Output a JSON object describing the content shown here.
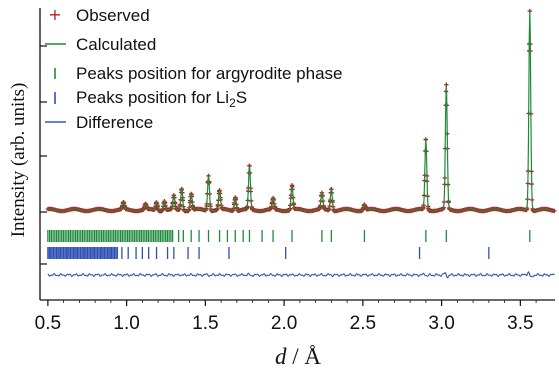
{
  "chart_data": {
    "type": "scatter",
    "title": "",
    "xlabel": "d / Å",
    "xlabel_parts": {
      "var": "d",
      "unit": " / Å"
    },
    "ylabel": "Intensity (arb. units)",
    "xlim": [
      0.45,
      3.72
    ],
    "ylim": [
      0,
      1
    ],
    "x_ticks": [
      0.5,
      1.0,
      1.5,
      2.0,
      2.5,
      3.0,
      3.5
    ],
    "x_tick_labels": [
      "0.5",
      "1.0",
      "1.5",
      "2.0",
      "2.5",
      "3.0",
      "3.5"
    ],
    "y_tick_labels_shown": false,
    "grid": false,
    "legend_position": "top-left",
    "legend": [
      {
        "name": "Observed",
        "marker": "+",
        "color": "#b22222"
      },
      {
        "name": "Calculated",
        "marker": "line",
        "color": "#1e8a3c"
      },
      {
        "name": "Peaks position for argyrodite phase",
        "marker": "tick",
        "color": "#1e8a3c"
      },
      {
        "name_main": "Peaks position for Li",
        "name_sub": "2",
        "name_end": "S",
        "marker": "tick",
        "color": "#2d4fb5"
      },
      {
        "name": "Difference",
        "marker": "line",
        "color": "#3556b8"
      }
    ],
    "background_level": 0.2,
    "peaks": [
      {
        "d": 0.98,
        "h": 0.025
      },
      {
        "d": 1.12,
        "h": 0.02
      },
      {
        "d": 1.19,
        "h": 0.03
      },
      {
        "d": 1.24,
        "h": 0.035
      },
      {
        "d": 1.3,
        "h": 0.05
      },
      {
        "d": 1.35,
        "h": 0.08
      },
      {
        "d": 1.41,
        "h": 0.06
      },
      {
        "d": 1.52,
        "h": 0.13
      },
      {
        "d": 1.59,
        "h": 0.07
      },
      {
        "d": 1.69,
        "h": 0.05
      },
      {
        "d": 1.78,
        "h": 0.16
      },
      {
        "d": 1.93,
        "h": 0.04
      },
      {
        "d": 2.05,
        "h": 0.09
      },
      {
        "d": 2.24,
        "h": 0.06
      },
      {
        "d": 2.3,
        "h": 0.08
      },
      {
        "d": 2.51,
        "h": 0.02
      },
      {
        "d": 2.9,
        "h": 0.26
      },
      {
        "d": 3.03,
        "h": 0.46
      },
      {
        "d": 3.56,
        "h": 0.74
      }
    ],
    "argyrodite_ticks_dense_range": [
      0.5,
      1.3
    ],
    "argyrodite_ticks_sparse": [
      1.33,
      1.36,
      1.41,
      1.46,
      1.52,
      1.59,
      1.64,
      1.69,
      1.74,
      1.78,
      1.86,
      1.93,
      2.05,
      2.24,
      2.3,
      2.51,
      2.9,
      3.03,
      3.56
    ],
    "li2s_ticks_dense_range": [
      0.5,
      0.95
    ],
    "li2s_ticks_sparse": [
      0.97,
      1.01,
      1.06,
      1.1,
      1.14,
      1.19,
      1.26,
      1.3,
      1.39,
      1.46,
      1.65,
      2.01,
      2.86,
      3.3
    ]
  }
}
